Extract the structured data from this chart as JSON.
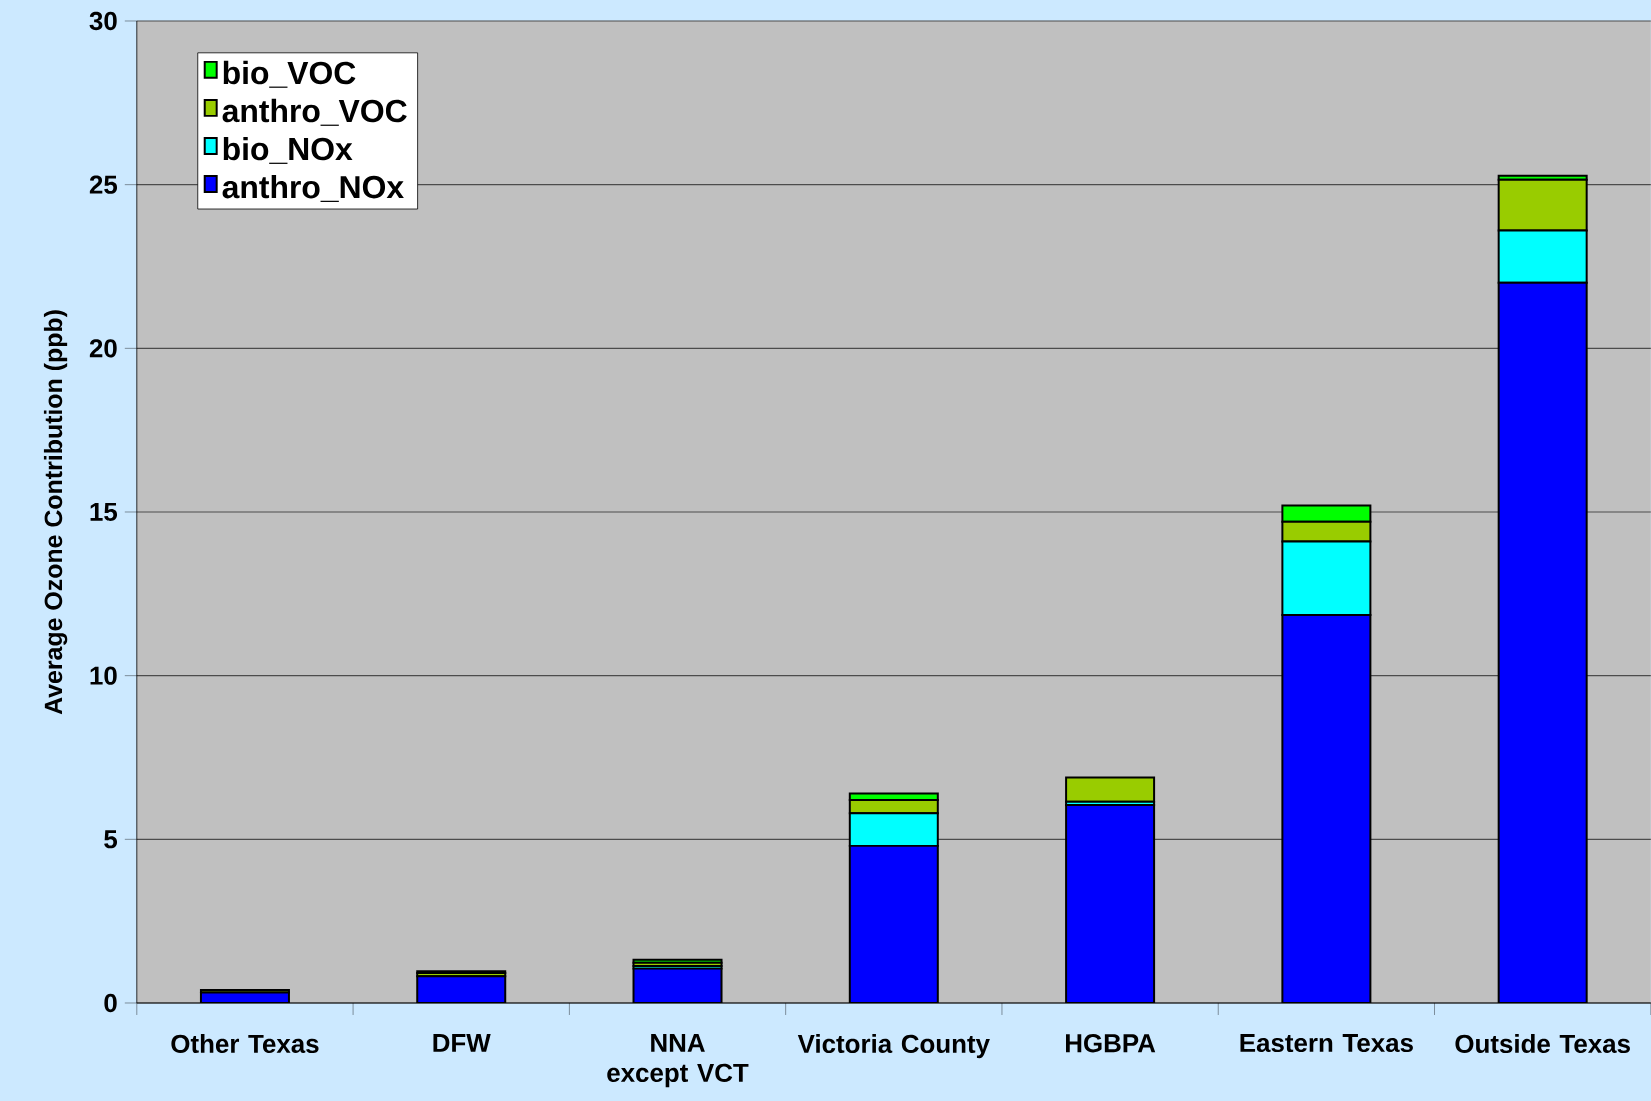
{
  "chart_data": {
    "type": "bar",
    "stacked": true,
    "ylabel": "Average Ozone Contribution (ppb)",
    "categories": [
      "Other Texas",
      "DFW",
      "NNA except VCT",
      "Victoria County",
      "HGBPA",
      "Eastern Texas",
      "Outside Texas"
    ],
    "series": [
      {
        "name": "anthro_NOx",
        "color": "#0000ff",
        "values": [
          0.32,
          0.82,
          1.05,
          4.8,
          6.05,
          11.85,
          22.0
        ]
      },
      {
        "name": "bio_NOx",
        "color": "#00ffff",
        "values": [
          null,
          null,
          0.08,
          1.0,
          0.1,
          2.25,
          1.6
        ]
      },
      {
        "name": "anthro_VOC",
        "color": "#99cc00",
        "values": [
          0.08,
          0.1,
          0.1,
          0.4,
          0.74,
          0.6,
          1.55
        ]
      },
      {
        "name": "bio_VOC",
        "color": "#00ff00",
        "values": [
          null,
          0.05,
          0.09,
          0.2,
          null,
          0.5,
          0.12
        ]
      }
    ],
    "ylim": [
      0,
      30
    ],
    "yticks": [
      0,
      5,
      10,
      15,
      20,
      25,
      30
    ],
    "grid": "y",
    "legend": "top left"
  }
}
